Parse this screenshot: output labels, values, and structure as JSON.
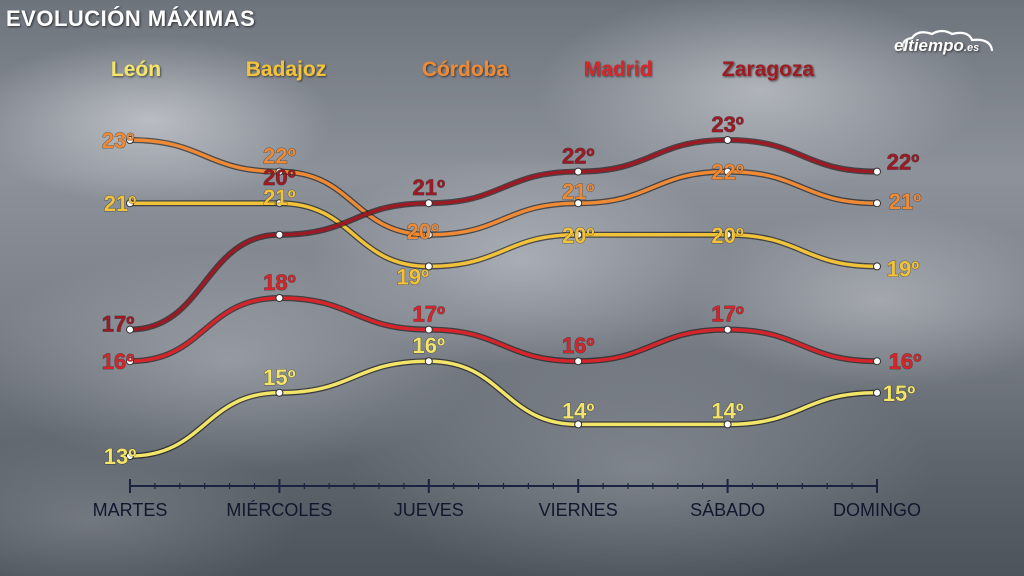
{
  "header": {
    "title": "EVOLUCIÓN MÁXIMAS",
    "logo_text": "eltiempo",
    "logo_suffix": ".es"
  },
  "chart_data": {
    "type": "line",
    "title": "EVOLUCIÓN MÁXIMAS",
    "xlabel": "",
    "ylabel": "",
    "categories": [
      "MARTES",
      "MIÉRCOLES",
      "JUEVES",
      "VIERNES",
      "SÁBADO",
      "DOMINGO"
    ],
    "ylim": [
      12,
      24
    ],
    "unit_suffix": "º",
    "grid": false,
    "legend_position": "top",
    "series": [
      {
        "name": "León",
        "color": "#f3e56a",
        "values": [
          13,
          15,
          16,
          14,
          14,
          15
        ]
      },
      {
        "name": "Badajoz",
        "color": "#f2c33a",
        "values": [
          21,
          21,
          19,
          20,
          20,
          19
        ]
      },
      {
        "name": "Córdoba",
        "color": "#ee8a36",
        "values": [
          23,
          22,
          20,
          21,
          22,
          21
        ]
      },
      {
        "name": "Madrid",
        "color": "#d5252a",
        "values": [
          16,
          18,
          17,
          16,
          17,
          16
        ]
      },
      {
        "name": "Zaragoza",
        "color": "#9c1a24",
        "values": [
          17,
          20,
          21,
          22,
          23,
          22
        ]
      }
    ]
  }
}
